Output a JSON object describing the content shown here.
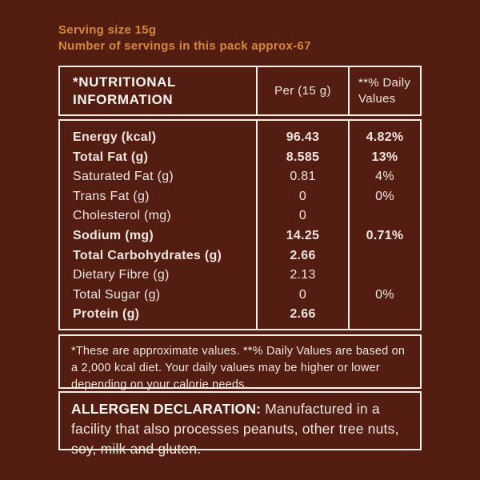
{
  "colors": {
    "background": "#541d12",
    "accent_orange": "#d6873e",
    "border_white": "#f6efe9",
    "text_cream": "#f0e6df"
  },
  "serving": {
    "line1": "Serving size 15g",
    "line2": "Number of servings in this pack approx-67"
  },
  "table": {
    "headers": [
      "*NUTRITIONAL INFORMATION",
      "Per (15 g)",
      "**% Daily Values"
    ],
    "rows": [
      {
        "label": "Energy (kcal)",
        "per": "96.43",
        "dv": "4.82%"
      },
      {
        "label": "Total Fat (g)",
        "per": "8.585",
        "dv": "13%"
      },
      {
        "label": "Saturated Fat (g)",
        "per": "0.81",
        "dv": "4%"
      },
      {
        "label": "Trans Fat (g)",
        "per": "0",
        "dv": "0%"
      },
      {
        "label": "Cholesterol (mg)",
        "per": "0",
        "dv": ""
      },
      {
        "label": "Sodium (mg)",
        "per": "14.25",
        "dv": "0.71%"
      },
      {
        "label": "Total Carbohydrates (g)",
        "per": "2.66",
        "dv": ""
      },
      {
        "label": "Dietary Fibre (g)",
        "per": "2.13",
        "dv": ""
      },
      {
        "label": "Total Sugar (g)",
        "per": "0",
        "dv": "0%"
      },
      {
        "label": "Protein (g)",
        "per": "2.66",
        "dv": ""
      }
    ]
  },
  "footnote": "*These are approximate values. **% Daily Values are based on a 2,000 kcal diet. Your daily values may be higher or lower depending on your calorie needs.",
  "allergen": {
    "title": "ALLERGEN DECLARATION:",
    "text": " Manufactured in a facility that also processes peanuts, other tree nuts, soy, milk and gluten."
  }
}
